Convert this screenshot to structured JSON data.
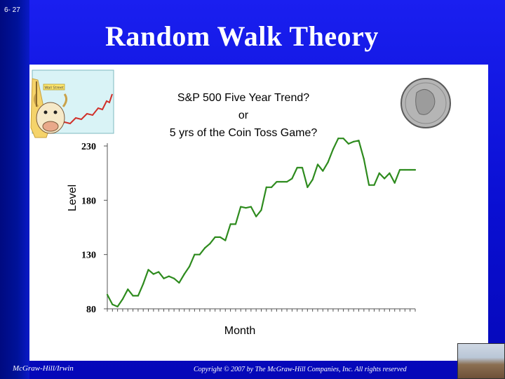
{
  "slide": {
    "number": "6- 27",
    "title": "Random Walk Theory",
    "footer_left": "McGraw-Hill/Irwin",
    "footer_right": "Copyright © 2007 by The McGraw-Hill Companies, Inc. All rights reserved"
  },
  "icons": {
    "bull": "bull-mascot-icon",
    "coin": "quarter-coin-icon",
    "book": "textbook-cover-icon"
  },
  "colors": {
    "background": "#0a0fd2",
    "line": "#2e8b1e",
    "panel": "#ffffff"
  },
  "chart_data": {
    "type": "line",
    "title_lines": [
      "S&P 500 Five Year Trend?",
      "or",
      "5 yrs of the Coin Toss Game?"
    ],
    "xlabel": "Month",
    "ylabel": "Level",
    "ylim": [
      80,
      230
    ],
    "yticks": [
      80,
      130,
      180,
      230
    ],
    "ytick_labels": [
      "80",
      "130",
      "180",
      "230"
    ],
    "x": [
      1,
      2,
      3,
      4,
      5,
      6,
      7,
      8,
      9,
      10,
      11,
      12,
      13,
      14,
      15,
      16,
      17,
      18,
      19,
      20,
      21,
      22,
      23,
      24,
      25,
      26,
      27,
      28,
      29,
      30,
      31,
      32,
      33,
      34,
      35,
      36,
      37,
      38,
      39,
      40,
      41,
      42,
      43,
      44,
      45,
      46,
      47,
      48,
      49,
      50,
      51,
      52,
      53,
      54,
      55,
      56,
      57,
      58,
      59,
      60,
      61
    ],
    "series": [
      {
        "values": [
          93,
          84,
          82,
          89,
          98,
          92,
          92,
          103,
          116,
          112,
          114,
          108,
          110,
          108,
          104,
          112,
          119,
          130,
          130,
          136,
          140,
          146,
          146,
          143,
          158,
          158,
          174,
          173,
          174,
          165,
          171,
          192,
          192,
          197,
          197,
          197,
          200,
          210,
          210,
          192,
          199,
          213,
          207,
          215,
          227,
          237,
          237,
          232,
          234,
          235,
          218,
          194,
          194,
          205,
          200,
          205,
          196,
          208,
          208,
          208,
          208
        ]
      }
    ],
    "grid": false,
    "legend": "none"
  }
}
